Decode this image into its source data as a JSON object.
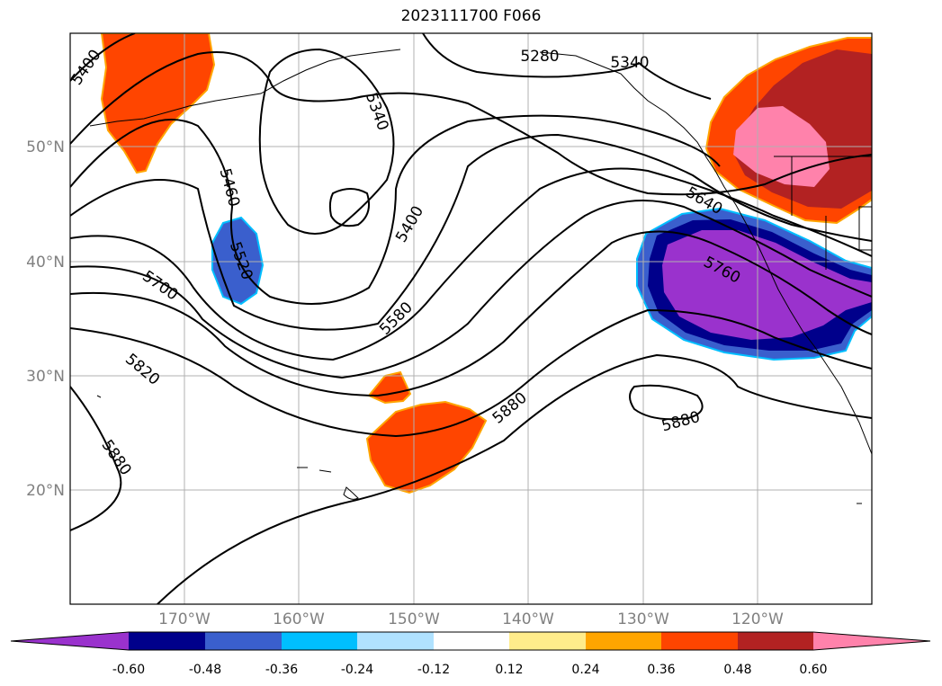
{
  "title": "2023111700 F066",
  "map": {
    "lon_labels": [
      "170°W",
      "160°W",
      "150°W",
      "140°W",
      "130°W",
      "120°W"
    ],
    "lat_labels": [
      "50°N",
      "40°N",
      "30°N",
      "20°N"
    ],
    "contour_labels": [
      "5400",
      "5280",
      "5340",
      "5340",
      "5460",
      "5520",
      "5400",
      "5700",
      "5580",
      "5640",
      "5760",
      "5820",
      "5880",
      "5880",
      "5880"
    ]
  },
  "colorbar": {
    "colors": [
      "#9a32cd",
      "#00008b",
      "#3a5fcd",
      "#00bfff",
      "#b0e2ff",
      "#ffffff",
      "#ffec8b",
      "#ffa500",
      "#ff4500",
      "#b22222",
      "#ff82ab"
    ],
    "ticks": [
      "-0.60",
      "-0.48",
      "-0.36",
      "-0.24",
      "-0.12",
      "0.12",
      "0.24",
      "0.36",
      "0.48",
      "0.60"
    ]
  }
}
